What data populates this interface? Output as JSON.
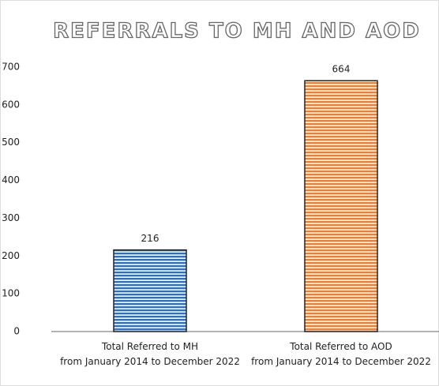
{
  "chart_data": {
    "type": "bar",
    "title": "REFERRALS TO MH AND AOD",
    "categories": [
      "Total Referred to MH\nfrom January 2014 to December 2022",
      "Total Referred to AOD\nfrom January 2014 to December 2022"
    ],
    "values": [
      216,
      664
    ],
    "colors": [
      "#2e6fc0",
      "#f07d32"
    ],
    "ylim": [
      0,
      700
    ],
    "yticks": [
      0,
      100,
      200,
      300,
      400,
      500,
      600,
      700
    ],
    "grid": false
  }
}
